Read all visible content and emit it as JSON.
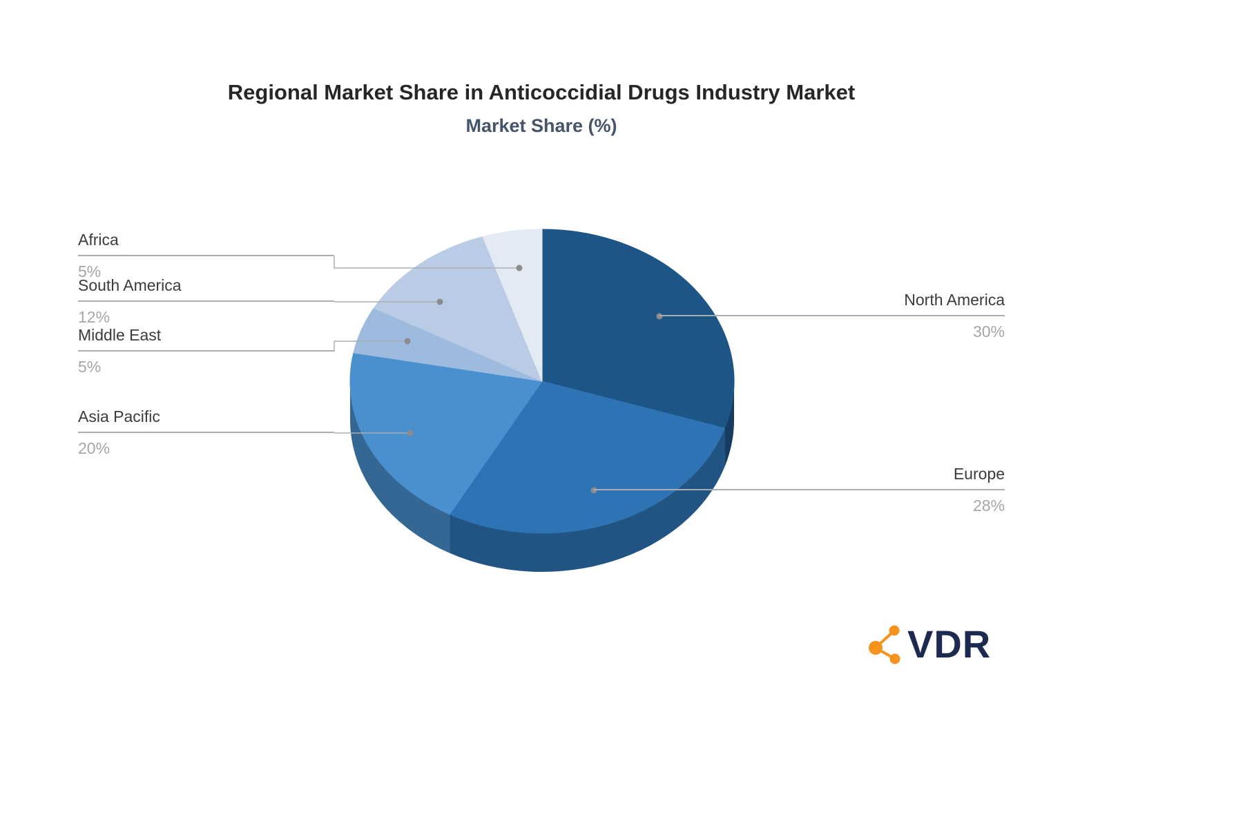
{
  "page": {
    "background": "#ffffff"
  },
  "chart_data": {
    "type": "pie",
    "title": "Regional Market Share in Anticoccidial Drugs Industry Market",
    "subtitle": "Market Share (%)",
    "effect": "3d",
    "direction": "clockwise",
    "start_angle_deg": 0,
    "legend_position": "none",
    "label_style": "callouts with leader lines and dots",
    "slices": [
      {
        "label": "North America",
        "value": 30,
        "display": "30%",
        "color": "#1E5587",
        "callout_side": "right"
      },
      {
        "label": "Europe",
        "value": 28,
        "display": "28%",
        "color": "#2E74B4",
        "callout_side": "right"
      },
      {
        "label": "Asia Pacific",
        "value": 20,
        "display": "20%",
        "color": "#4A8FCE",
        "callout_side": "left"
      },
      {
        "label": "Middle East",
        "value": 5,
        "display": "5%",
        "color": "#9DBBDE",
        "callout_side": "left"
      },
      {
        "label": "South America",
        "value": 12,
        "display": "12%",
        "color": "#BACCE5",
        "callout_side": "left"
      },
      {
        "label": "Africa",
        "value": 5,
        "display": "5%",
        "color": "#E3EAF4",
        "callout_side": "left"
      }
    ]
  },
  "style": {
    "leader_line_color": "#A9AEB4",
    "leader_dot_color": "#8C8C8C",
    "label_name_color": "#3B3B3B",
    "label_value_color": "#A6A6A6",
    "title_color": "#262626",
    "subtitle_color": "#44546A"
  },
  "branding": {
    "logo_text": "VDR",
    "logo_text_color": "#1B2A4E",
    "icon_name": "network-nodes-icon",
    "icon_color": "#F6921E"
  }
}
